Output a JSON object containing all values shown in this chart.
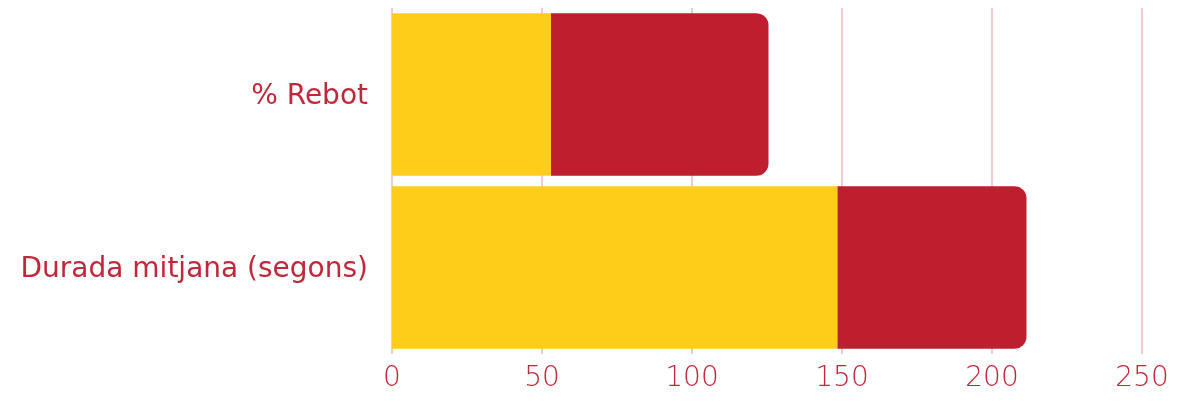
{
  "chart_data": {
    "type": "bar",
    "orientation": "horizontal",
    "stacked": true,
    "categories": [
      "% Rebot",
      "Durada mitjana (segons)"
    ],
    "series": [
      {
        "color": "#fecd1a",
        "values": [
          53,
          148.5
        ]
      },
      {
        "color": "#be1e2d",
        "values": [
          72.5,
          63
        ]
      }
    ],
    "xlim": [
      0,
      250
    ],
    "xticks": [
      0,
      50,
      100,
      150,
      200,
      250
    ],
    "grid": "x"
  }
}
